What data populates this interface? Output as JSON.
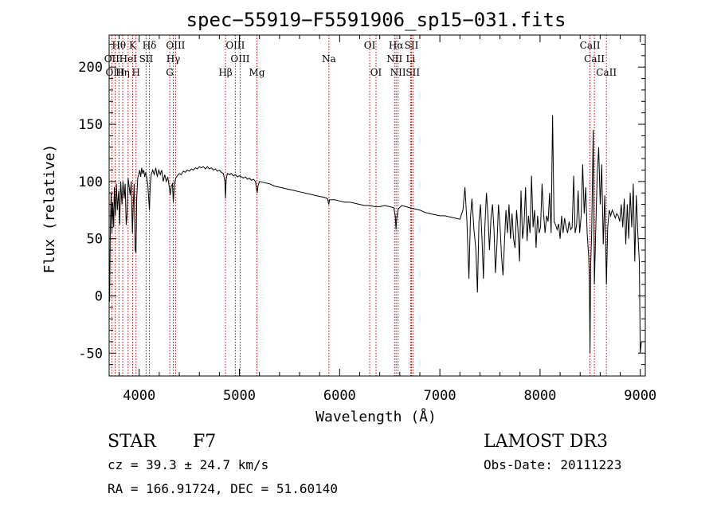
{
  "chart_data": {
    "type": "line",
    "title": "spec−55919−F5591906_sp15−031.fits",
    "xlabel": "Wavelength (Å)",
    "ylabel": "Flux (relative)",
    "xlim": [
      3700,
      9050
    ],
    "ylim": [
      -70,
      228
    ],
    "xticks": [
      4000,
      5000,
      6000,
      7000,
      8000,
      9000
    ],
    "yticks": [
      -50,
      0,
      50,
      100,
      150,
      200
    ],
    "series": [
      {
        "name": "flux",
        "color": "#000000",
        "points": [
          [
            3700,
            15
          ],
          [
            3705,
            -5
          ],
          [
            3712,
            60
          ],
          [
            3720,
            90
          ],
          [
            3728,
            55
          ],
          [
            3735,
            82
          ],
          [
            3745,
            60
          ],
          [
            3752,
            95
          ],
          [
            3762,
            70
          ],
          [
            3772,
            98
          ],
          [
            3782,
            75
          ],
          [
            3795,
            92
          ],
          [
            3805,
            62
          ],
          [
            3815,
            100
          ],
          [
            3828,
            80
          ],
          [
            3838,
            100
          ],
          [
            3850,
            85
          ],
          [
            3860,
            98
          ],
          [
            3870,
            62
          ],
          [
            3880,
            72
          ],
          [
            3890,
            103
          ],
          [
            3900,
            95
          ],
          [
            3910,
            88
          ],
          [
            3920,
            100
          ],
          [
            3932,
            55
          ],
          [
            3940,
            78
          ],
          [
            3950,
            98
          ],
          [
            3960,
            40
          ],
          [
            3968,
            38
          ],
          [
            3975,
            85
          ],
          [
            3985,
            103
          ],
          [
            3995,
            106
          ],
          [
            4005,
            110
          ],
          [
            4015,
            104
          ],
          [
            4025,
            112
          ],
          [
            4035,
            107
          ],
          [
            4045,
            110
          ],
          [
            4055,
            104
          ],
          [
            4065,
            108
          ],
          [
            4075,
            103
          ],
          [
            4085,
            98
          ],
          [
            4095,
            85
          ],
          [
            4102,
            75
          ],
          [
            4110,
            98
          ],
          [
            4120,
            106
          ],
          [
            4135,
            110
          ],
          [
            4150,
            106
          ],
          [
            4165,
            112
          ],
          [
            4180,
            104
          ],
          [
            4195,
            110
          ],
          [
            4210,
            106
          ],
          [
            4225,
            110
          ],
          [
            4240,
            100
          ],
          [
            4255,
            106
          ],
          [
            4270,
            100
          ],
          [
            4285,
            104
          ],
          [
            4300,
            95
          ],
          [
            4310,
            88
          ],
          [
            4320,
            96
          ],
          [
            4332,
            98
          ],
          [
            4340,
            82
          ],
          [
            4352,
            98
          ],
          [
            4365,
            103
          ],
          [
            4380,
            105
          ],
          [
            4400,
            107
          ],
          [
            4420,
            106
          ],
          [
            4440,
            109
          ],
          [
            4460,
            108
          ],
          [
            4480,
            110
          ],
          [
            4500,
            109
          ],
          [
            4520,
            111
          ],
          [
            4540,
            110
          ],
          [
            4560,
            112
          ],
          [
            4580,
            111
          ],
          [
            4600,
            113
          ],
          [
            4620,
            112
          ],
          [
            4640,
            113
          ],
          [
            4660,
            111
          ],
          [
            4680,
            113
          ],
          [
            4700,
            111
          ],
          [
            4720,
            112
          ],
          [
            4740,
            110
          ],
          [
            4760,
            111
          ],
          [
            4780,
            109
          ],
          [
            4800,
            110
          ],
          [
            4820,
            108
          ],
          [
            4840,
            107
          ],
          [
            4855,
            100
          ],
          [
            4861,
            85
          ],
          [
            4868,
            102
          ],
          [
            4880,
            107
          ],
          [
            4900,
            106
          ],
          [
            4920,
            107
          ],
          [
            4940,
            105
          ],
          [
            4960,
            106
          ],
          [
            4980,
            104
          ],
          [
            5000,
            105
          ],
          [
            5020,
            104
          ],
          [
            5040,
            103
          ],
          [
            5060,
            104
          ],
          [
            5080,
            102
          ],
          [
            5100,
            103
          ],
          [
            5120,
            101
          ],
          [
            5140,
            102
          ],
          [
            5160,
            100
          ],
          [
            5172,
            92
          ],
          [
            5178,
            90
          ],
          [
            5185,
            96
          ],
          [
            5200,
            100
          ],
          [
            5250,
            99
          ],
          [
            5300,
            98
          ],
          [
            5350,
            96
          ],
          [
            5400,
            95
          ],
          [
            5450,
            94
          ],
          [
            5500,
            93
          ],
          [
            5550,
            92
          ],
          [
            5600,
            91
          ],
          [
            5650,
            90
          ],
          [
            5700,
            89
          ],
          [
            5750,
            88
          ],
          [
            5800,
            87
          ],
          [
            5850,
            86
          ],
          [
            5880,
            85
          ],
          [
            5892,
            80
          ],
          [
            5900,
            84
          ],
          [
            5950,
            84
          ],
          [
            6000,
            83
          ],
          [
            6050,
            82
          ],
          [
            6100,
            82
          ],
          [
            6150,
            81
          ],
          [
            6200,
            80
          ],
          [
            6250,
            79
          ],
          [
            6300,
            79
          ],
          [
            6350,
            78
          ],
          [
            6400,
            78
          ],
          [
            6450,
            79
          ],
          [
            6500,
            78
          ],
          [
            6540,
            77
          ],
          [
            6555,
            70
          ],
          [
            6563,
            58
          ],
          [
            6570,
            68
          ],
          [
            6585,
            76
          ],
          [
            6620,
            79
          ],
          [
            6660,
            78
          ],
          [
            6700,
            77
          ],
          [
            6750,
            76
          ],
          [
            6800,
            75
          ],
          [
            6850,
            73
          ],
          [
            6900,
            72
          ],
          [
            6950,
            71
          ],
          [
            7000,
            70
          ],
          [
            7050,
            70
          ],
          [
            7100,
            69
          ],
          [
            7150,
            68
          ],
          [
            7200,
            67
          ],
          [
            7230,
            75
          ],
          [
            7250,
            95
          ],
          [
            7270,
            65
          ],
          [
            7290,
            15
          ],
          [
            7305,
            68
          ],
          [
            7320,
            85
          ],
          [
            7340,
            58
          ],
          [
            7360,
            40
          ],
          [
            7375,
            3
          ],
          [
            7390,
            65
          ],
          [
            7405,
            80
          ],
          [
            7420,
            50
          ],
          [
            7435,
            15
          ],
          [
            7450,
            62
          ],
          [
            7465,
            90
          ],
          [
            7480,
            70
          ],
          [
            7495,
            40
          ],
          [
            7510,
            68
          ],
          [
            7525,
            80
          ],
          [
            7540,
            58
          ],
          [
            7555,
            20
          ],
          [
            7570,
            45
          ],
          [
            7585,
            80
          ],
          [
            7600,
            62
          ],
          [
            7615,
            35
          ],
          [
            7630,
            18
          ],
          [
            7645,
            48
          ],
          [
            7660,
            75
          ],
          [
            7675,
            55
          ],
          [
            7690,
            80
          ],
          [
            7705,
            50
          ],
          [
            7720,
            72
          ],
          [
            7735,
            50
          ],
          [
            7750,
            42
          ],
          [
            7765,
            75
          ],
          [
            7780,
            58
          ],
          [
            7795,
            30
          ],
          [
            7810,
            92
          ],
          [
            7825,
            50
          ],
          [
            7840,
            62
          ],
          [
            7855,
            95
          ],
          [
            7870,
            48
          ],
          [
            7885,
            70
          ],
          [
            7900,
            55
          ],
          [
            7915,
            105
          ],
          [
            7930,
            60
          ],
          [
            7945,
            75
          ],
          [
            7960,
            42
          ],
          [
            7975,
            70
          ],
          [
            7990,
            55
          ],
          [
            8005,
            60
          ],
          [
            8020,
            98
          ],
          [
            8035,
            72
          ],
          [
            8050,
            55
          ],
          [
            8065,
            70
          ],
          [
            8080,
            65
          ],
          [
            8095,
            90
          ],
          [
            8110,
            55
          ],
          [
            8125,
            158
          ],
          [
            8140,
            65
          ],
          [
            8155,
            62
          ],
          [
            8170,
            58
          ],
          [
            8185,
            63
          ],
          [
            8200,
            50
          ],
          [
            8215,
            70
          ],
          [
            8230,
            55
          ],
          [
            8245,
            68
          ],
          [
            8260,
            60
          ],
          [
            8275,
            55
          ],
          [
            8290,
            65
          ],
          [
            8305,
            58
          ],
          [
            8320,
            60
          ],
          [
            8335,
            105
          ],
          [
            8350,
            55
          ],
          [
            8365,
            62
          ],
          [
            8380,
            92
          ],
          [
            8395,
            55
          ],
          [
            8410,
            70
          ],
          [
            8425,
            115
          ],
          [
            8440,
            72
          ],
          [
            8455,
            95
          ],
          [
            8470,
            55
          ],
          [
            8485,
            35
          ],
          [
            8492,
            15
          ],
          [
            8498,
            -50
          ],
          [
            8505,
            25
          ],
          [
            8515,
            55
          ],
          [
            8530,
            145
          ],
          [
            8542,
            10
          ],
          [
            8555,
            55
          ],
          [
            8570,
            105
          ],
          [
            8585,
            130
          ],
          [
            8600,
            80
          ],
          [
            8615,
            115
          ],
          [
            8630,
            45
          ],
          [
            8645,
            88
          ],
          [
            8662,
            10
          ],
          [
            8675,
            60
          ],
          [
            8690,
            75
          ],
          [
            8705,
            70
          ],
          [
            8720,
            75
          ],
          [
            8735,
            72
          ],
          [
            8750,
            68
          ],
          [
            8765,
            72
          ],
          [
            8780,
            70
          ],
          [
            8795,
            65
          ],
          [
            8810,
            80
          ],
          [
            8825,
            60
          ],
          [
            8840,
            85
          ],
          [
            8855,
            45
          ],
          [
            8870,
            80
          ],
          [
            8885,
            50
          ],
          [
            8900,
            90
          ],
          [
            8915,
            60
          ],
          [
            8930,
            98
          ],
          [
            8945,
            30
          ],
          [
            8960,
            88
          ],
          [
            8975,
            55
          ],
          [
            8990,
            30
          ],
          [
            9000,
            -50
          ],
          [
            9010,
            -40
          ]
        ]
      }
    ],
    "lines": [
      {
        "label": "Hθ",
        "wl": 3798,
        "row": 0
      },
      {
        "label": "OII",
        "wl": 3727,
        "row": 1
      },
      {
        "label": "OIII",
        "wl": 3760,
        "row": 2
      },
      {
        "label": "Hη",
        "wl": 3835,
        "row": 2
      },
      {
        "label": "HeI",
        "wl": 3889,
        "row": 1
      },
      {
        "label": "K",
        "wl": 3934,
        "row": 0
      },
      {
        "label": "SII",
        "wl": 4069,
        "row": 1
      },
      {
        "label": "H",
        "wl": 3968,
        "row": 2
      },
      {
        "label": "Hδ",
        "wl": 4102,
        "row": 0
      },
      {
        "label": "OIII",
        "wl": 4363,
        "row": 0
      },
      {
        "label": "Hγ",
        "wl": 4340,
        "row": 1
      },
      {
        "label": "G",
        "wl": 4305,
        "row": 2
      },
      {
        "label": "Hβ",
        "wl": 4861,
        "row": 2
      },
      {
        "label": "OIII",
        "wl": 4959,
        "row": 0
      },
      {
        "label": "OIII",
        "wl": 5007,
        "row": 1
      },
      {
        "label": "Mg",
        "wl": 5175,
        "row": 2
      },
      {
        "label": "Na",
        "wl": 5893,
        "row": 1
      },
      {
        "label": "OI",
        "wl": 6300,
        "row": 0
      },
      {
        "label": "OI",
        "wl": 6363,
        "row": 2
      },
      {
        "label": "Hα",
        "wl": 6563,
        "row": 0
      },
      {
        "label": "NII",
        "wl": 6548,
        "row": 1
      },
      {
        "label": "NII",
        "wl": 6583,
        "row": 2
      },
      {
        "label": "SII",
        "wl": 6717,
        "row": 0
      },
      {
        "label": "Li",
        "wl": 6708,
        "row": 1
      },
      {
        "label": "SII",
        "wl": 6731,
        "row": 2
      },
      {
        "label": "CaII",
        "wl": 8498,
        "row": 0
      },
      {
        "label": "CaII",
        "wl": 8542,
        "row": 1
      },
      {
        "label": "CaII",
        "wl": 8662,
        "row": 2
      }
    ],
    "line_color": "#cc0000"
  },
  "info": {
    "object_class": "STAR",
    "subclass": "F7",
    "survey": "LAMOST DR3",
    "cz": "cz = 39.3 ± 24.7 km/s",
    "obs_date": "Obs-Date: 20111223",
    "radec": "RA = 166.91724, DEC =  51.60140"
  }
}
